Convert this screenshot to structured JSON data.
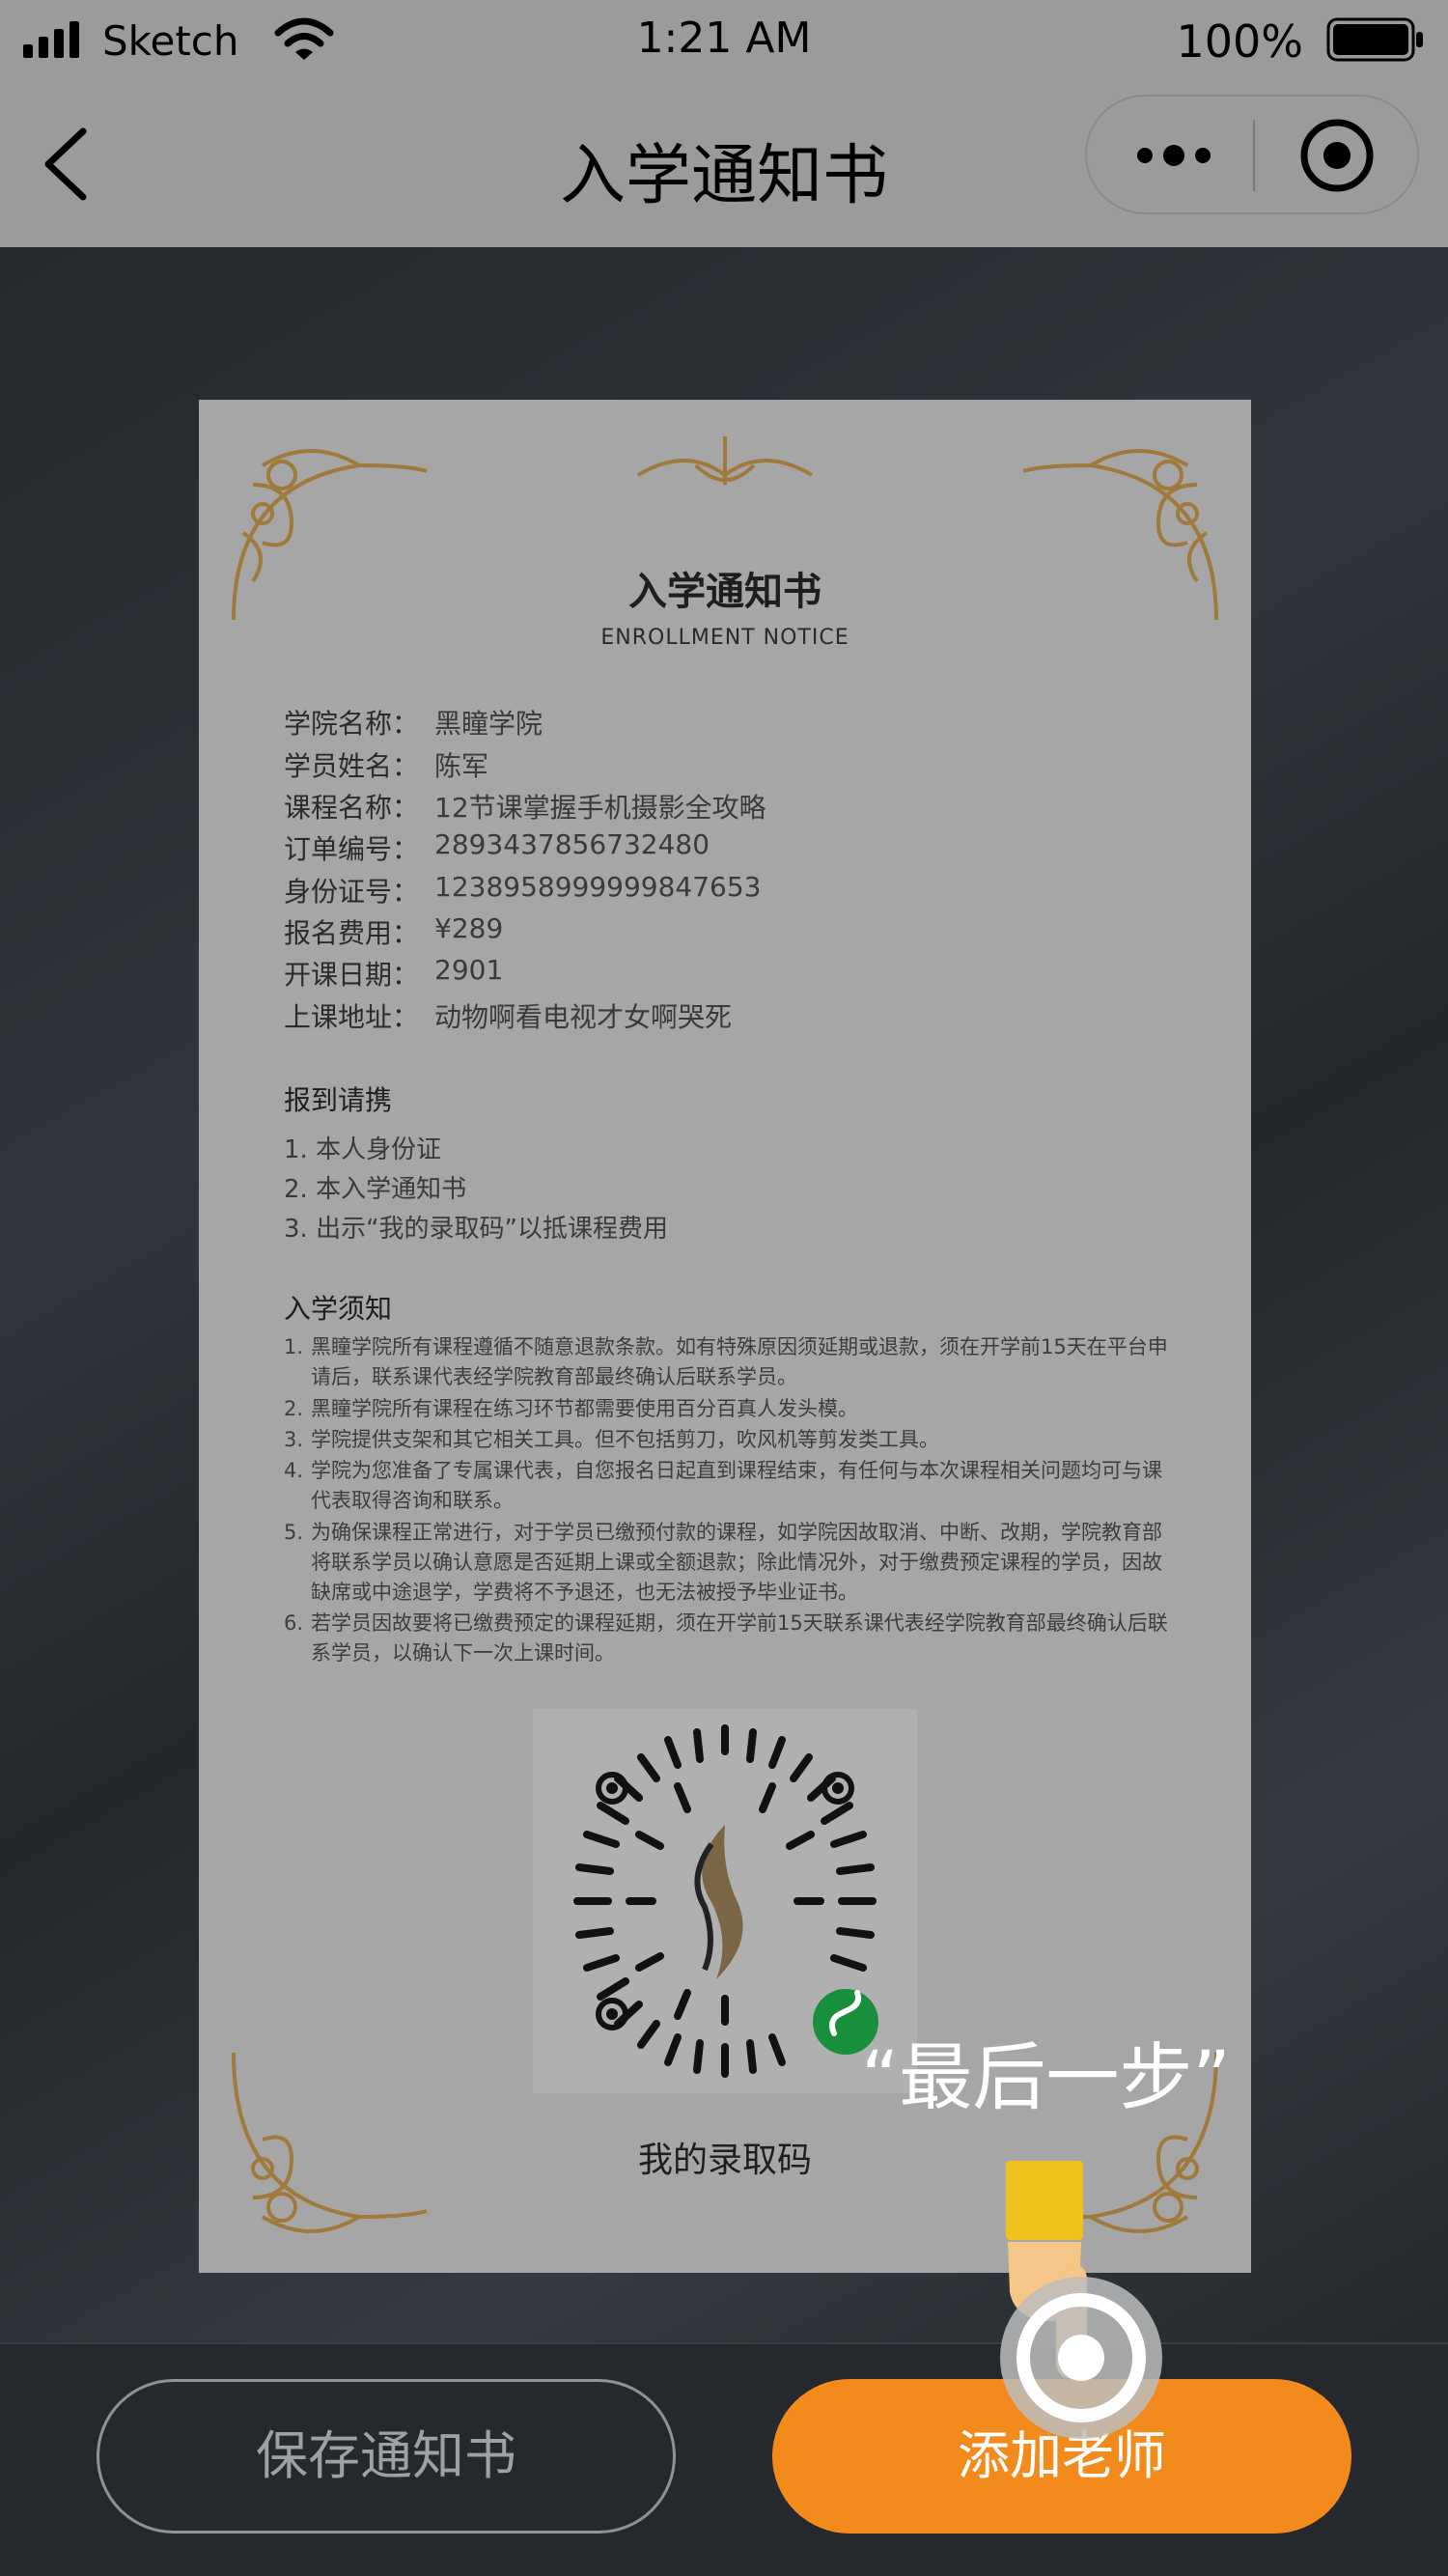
{
  "status_bar": {
    "carrier": "Sketch",
    "time": "1:21 AM",
    "battery": "100%"
  },
  "nav": {
    "title": "入学通知书"
  },
  "certificate": {
    "title": "入学通知书",
    "subtitle": "ENROLLMENT NOTICE",
    "info": [
      {
        "label": "学院名称：",
        "value": "黑瞳学院"
      },
      {
        "label": "学员姓名：",
        "value": "陈军"
      },
      {
        "label": "课程名称：",
        "value": "12节课掌握手机摄影全攻略"
      },
      {
        "label": "订单编号：",
        "value": "2893437856732480"
      },
      {
        "label": "身份证号：",
        "value": "1238958999999847653"
      },
      {
        "label": "报名费用：",
        "value": "¥289"
      },
      {
        "label": "开课日期：",
        "value": "2901"
      },
      {
        "label": "上课地址：",
        "value": "动物啊看电视才女啊哭死"
      }
    ],
    "checkin_heading": "报到请携",
    "checkin_items": [
      "1. 本人身份证",
      "2. 本入学通知书",
      "3. 出示“我的录取码”以抵课程费用"
    ],
    "notice_heading": "入学须知",
    "notices": [
      {
        "num": "1.",
        "text": "黑瞳学院所有课程遵循不随意退款条款。如有特殊原因须延期或退款，须在开学前15天在平台申请后，联系课代表经学院教育部最终确认后联系学员。"
      },
      {
        "num": "2.",
        "text": "黑瞳学院所有课程在练习环节都需要使用百分百真人发头模。"
      },
      {
        "num": "3.",
        "text": "学院提供支架和其它相关工具。但不包括剪刀，吹风机等剪发类工具。"
      },
      {
        "num": "4.",
        "text": "学院为您准备了专属课代表，自您报名日起直到课程结束，有任何与本次课程相关问题均可与课代表取得咨询和联系。"
      },
      {
        "num": "5.",
        "text": "为确保课程正常进行，对于学员已缴预付款的课程，如学院因故取消、中断、改期，学院教育部将联系学员以确认意愿是否延期上课或全额退款；除此情况外，对于缴费预定课程的学员，因故缺席或中途退学，学费将不予退还，也无法被授予毕业证书。"
      },
      {
        "num": "6.",
        "text": "若学员因故要将已缴费预定的课程延期，须在开学前15天联系课代表经学院教育部最终确认后联系学员，以确认下一次上课时间。"
      }
    ],
    "qr_label": "我的录取码"
  },
  "callout": "“最后一步”",
  "buttons": {
    "save": "保存通知书",
    "add_teacher": "添加老师"
  },
  "colors": {
    "accent": "#f28a1c",
    "overlay": "#9b9b9b",
    "gold": "#b08a4a"
  }
}
